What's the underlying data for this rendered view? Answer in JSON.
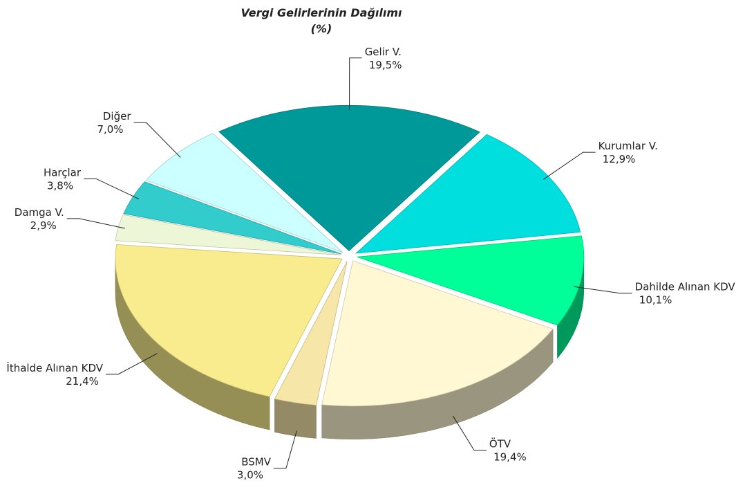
{
  "chart_data": {
    "type": "pie",
    "title": "Vergi Gelirlerinin Dağılımı",
    "subtitle": "(%)",
    "categories": [
      "Gelir V.",
      "Kurumlar V.",
      "Dahilde Alınan KDV",
      "ÖTV",
      "BSMV",
      "İthalde Alınan KDV",
      "Damga V.",
      "Harçlar",
      "Diğer"
    ],
    "values": [
      19.5,
      12.9,
      10.1,
      19.4,
      3.0,
      21.4,
      2.9,
      3.8,
      7.0
    ],
    "value_labels": [
      "19,5%",
      "12,9%",
      "10,1%",
      "19,4%",
      "3,0%",
      "21,4%",
      "2,9%",
      "3,8%",
      "7,0%"
    ],
    "colors": [
      "#009999",
      "#00dede",
      "#00ff99",
      "#fff8d2",
      "#f6e6a8",
      "#f8ec8e",
      "#eef6d8",
      "#33cccc",
      "#ccffff"
    ]
  }
}
